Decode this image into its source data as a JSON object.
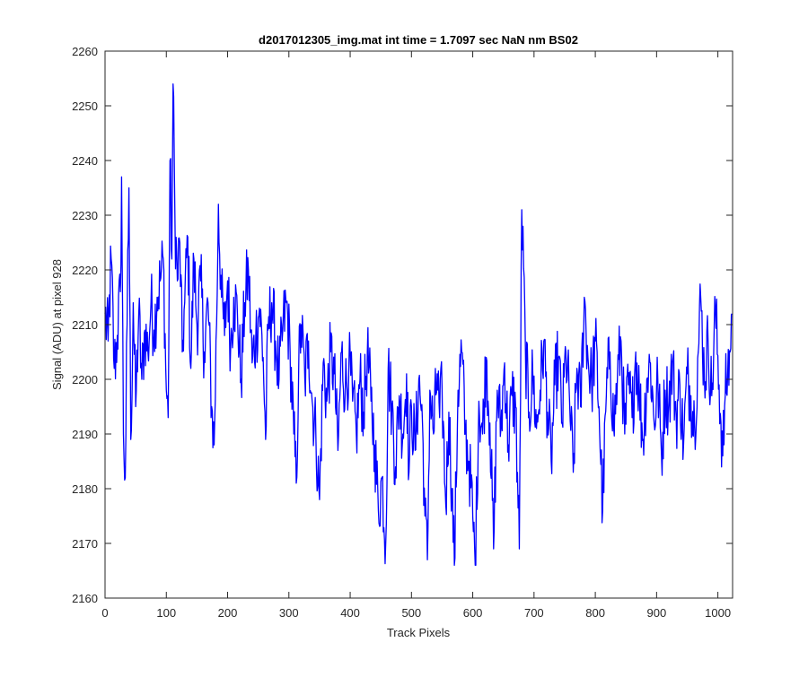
{
  "chart_data": {
    "type": "line",
    "title": "d2017012305_img.mat int time = 1.7097 sec  NaN nm BS02",
    "xlabel": "Track Pixels",
    "ylabel": "Signal (ADU) at pixel 928",
    "xlim": [
      0,
      1024
    ],
    "ylim": [
      2160,
      2260
    ],
    "xticks": [
      0,
      100,
      200,
      300,
      400,
      500,
      600,
      700,
      800,
      900,
      1000
    ],
    "yticks": [
      2160,
      2170,
      2180,
      2190,
      2200,
      2210,
      2220,
      2230,
      2240,
      2250,
      2260
    ],
    "grid": false,
    "legend": "none",
    "series": [
      {
        "color": "#0000ff",
        "n_points": 1024,
        "anchors": [
          [
            0,
            2212
          ],
          [
            5,
            2207
          ],
          [
            10,
            2222
          ],
          [
            15,
            2202
          ],
          [
            20,
            2208
          ],
          [
            25,
            2216
          ],
          [
            27,
            2237
          ],
          [
            30,
            2190
          ],
          [
            33,
            2182
          ],
          [
            36,
            2210
          ],
          [
            39,
            2235
          ],
          [
            42,
            2189
          ],
          [
            46,
            2214
          ],
          [
            50,
            2195
          ],
          [
            55,
            2212
          ],
          [
            60,
            2200
          ],
          [
            65,
            2209
          ],
          [
            70,
            2205
          ],
          [
            75,
            2214
          ],
          [
            80,
            2209
          ],
          [
            85,
            2215
          ],
          [
            90,
            2218
          ],
          [
            95,
            2222
          ],
          [
            100,
            2198
          ],
          [
            103,
            2193
          ],
          [
            106,
            2240
          ],
          [
            109,
            2222
          ],
          [
            111,
            2254
          ],
          [
            114,
            2230
          ],
          [
            118,
            2218
          ],
          [
            122,
            2225
          ],
          [
            126,
            2205
          ],
          [
            130,
            2214
          ],
          [
            135,
            2226
          ],
          [
            140,
            2202
          ],
          [
            145,
            2222
          ],
          [
            150,
            2210
          ],
          [
            156,
            2218
          ],
          [
            162,
            2205
          ],
          [
            168,
            2214
          ],
          [
            174,
            2195
          ],
          [
            178,
            2188
          ],
          [
            182,
            2210
          ],
          [
            185,
            2232
          ],
          [
            190,
            2215
          ],
          [
            195,
            2208
          ],
          [
            200,
            2218
          ],
          [
            205,
            2206
          ],
          [
            210,
            2215
          ],
          [
            216,
            2212
          ],
          [
            222,
            2200
          ],
          [
            228,
            2214
          ],
          [
            234,
            2220
          ],
          [
            240,
            2203
          ],
          [
            246,
            2208
          ],
          [
            252,
            2213
          ],
          [
            258,
            2204
          ],
          [
            262,
            2189
          ],
          [
            266,
            2209
          ],
          [
            272,
            2214
          ],
          [
            278,
            2207
          ],
          [
            284,
            2200
          ],
          [
            290,
            2209
          ],
          [
            296,
            2214
          ],
          [
            302,
            2205
          ],
          [
            308,
            2190
          ],
          [
            312,
            2181
          ],
          [
            316,
            2202
          ],
          [
            320,
            2210
          ],
          [
            326,
            2200
          ],
          [
            332,
            2207
          ],
          [
            338,
            2196
          ],
          [
            344,
            2190
          ],
          [
            350,
            2178
          ],
          [
            356,
            2203
          ],
          [
            362,
            2196
          ],
          [
            368,
            2205
          ],
          [
            374,
            2201
          ],
          [
            380,
            2187
          ],
          [
            386,
            2205
          ],
          [
            392,
            2198
          ],
          [
            398,
            2203
          ],
          [
            404,
            2196
          ],
          [
            410,
            2190
          ],
          [
            416,
            2200
          ],
          [
            422,
            2194
          ],
          [
            428,
            2205
          ],
          [
            434,
            2196
          ],
          [
            440,
            2188
          ],
          [
            446,
            2176
          ],
          [
            452,
            2182
          ],
          [
            458,
            2170
          ],
          [
            462,
            2202
          ],
          [
            468,
            2195
          ],
          [
            474,
            2184
          ],
          [
            480,
            2197
          ],
          [
            486,
            2190
          ],
          [
            492,
            2201
          ],
          [
            496,
            2183
          ],
          [
            500,
            2195
          ],
          [
            506,
            2187
          ],
          [
            512,
            2200
          ],
          [
            518,
            2192
          ],
          [
            522,
            2175
          ],
          [
            526,
            2167
          ],
          [
            530,
            2198
          ],
          [
            536,
            2190
          ],
          [
            542,
            2201
          ],
          [
            546,
            2193
          ],
          [
            550,
            2198
          ],
          [
            556,
            2177
          ],
          [
            561,
            2194
          ],
          [
            566,
            2180
          ],
          [
            570,
            2166
          ],
          [
            576,
            2198
          ],
          [
            582,
            2205
          ],
          [
            588,
            2190
          ],
          [
            594,
            2185
          ],
          [
            600,
            2175
          ],
          [
            604,
            2166
          ],
          [
            610,
            2196
          ],
          [
            616,
            2190
          ],
          [
            622,
            2204
          ],
          [
            628,
            2192
          ],
          [
            634,
            2169
          ],
          [
            640,
            2198
          ],
          [
            646,
            2191
          ],
          [
            652,
            2203
          ],
          [
            658,
            2188
          ],
          [
            664,
            2197
          ],
          [
            670,
            2195
          ],
          [
            676,
            2169
          ],
          [
            680,
            2231
          ],
          [
            686,
            2205
          ],
          [
            692,
            2194
          ],
          [
            698,
            2201
          ],
          [
            704,
            2191
          ],
          [
            710,
            2198
          ],
          [
            716,
            2207
          ],
          [
            722,
            2194
          ],
          [
            728,
            2185
          ],
          [
            734,
            2199
          ],
          [
            740,
            2204
          ],
          [
            746,
            2192
          ],
          [
            752,
            2205
          ],
          [
            758,
            2196
          ],
          [
            764,
            2183
          ],
          [
            770,
            2202
          ],
          [
            776,
            2195
          ],
          [
            782,
            2215
          ],
          [
            788,
            2204
          ],
          [
            794,
            2199
          ],
          [
            800,
            2207
          ],
          [
            806,
            2195
          ],
          [
            812,
            2176
          ],
          [
            818,
            2197
          ],
          [
            824,
            2205
          ],
          [
            830,
            2191
          ],
          [
            836,
            2200
          ],
          [
            842,
            2207
          ],
          [
            848,
            2190
          ],
          [
            854,
            2199
          ],
          [
            860,
            2193
          ],
          [
            866,
            2205
          ],
          [
            872,
            2197
          ],
          [
            878,
            2189
          ],
          [
            884,
            2200
          ],
          [
            890,
            2203
          ],
          [
            896,
            2192
          ],
          [
            902,
            2200
          ],
          [
            908,
            2186
          ],
          [
            914,
            2198
          ],
          [
            920,
            2196
          ],
          [
            926,
            2203
          ],
          [
            932,
            2193
          ],
          [
            938,
            2199
          ],
          [
            944,
            2188
          ],
          [
            950,
            2201
          ],
          [
            956,
            2197
          ],
          [
            962,
            2192
          ],
          [
            968,
            2205
          ],
          [
            972,
            2215
          ],
          [
            978,
            2200
          ],
          [
            984,
            2207
          ],
          [
            990,
            2197
          ],
          [
            996,
            2213
          ],
          [
            1002,
            2199
          ],
          [
            1008,
            2186
          ],
          [
            1012,
            2197
          ],
          [
            1016,
            2201
          ],
          [
            1020,
            2205
          ],
          [
            1023,
            2212
          ]
        ]
      }
    ]
  }
}
